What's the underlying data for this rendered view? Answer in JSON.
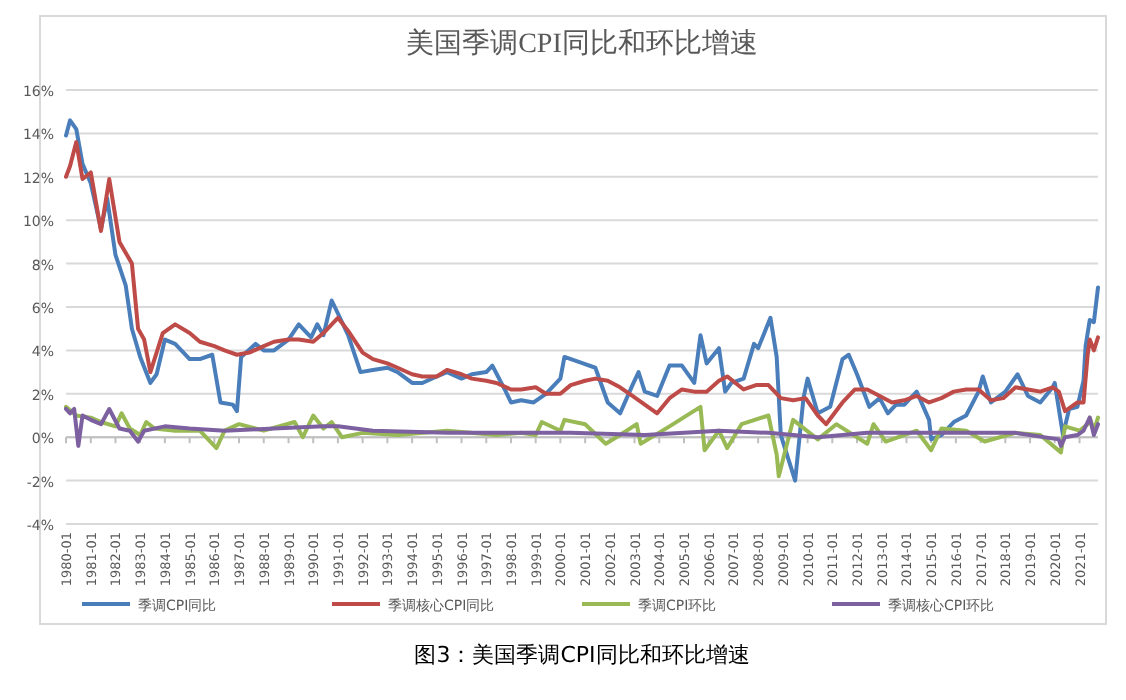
{
  "chart_data": {
    "type": "line",
    "title": "美国季调CPI同比和环比增速",
    "annotations": [
      "图3：美国季调CPI同比和环比增速"
    ],
    "ylim": [
      -4,
      16
    ],
    "yticks": [
      {
        "value": -4,
        "label": "-4%"
      },
      {
        "value": -2,
        "label": "-2%"
      },
      {
        "value": 0,
        "label": "0%"
      },
      {
        "value": 2,
        "label": "2%"
      },
      {
        "value": 4,
        "label": "4%"
      },
      {
        "value": 6,
        "label": "6%"
      },
      {
        "value": 8,
        "label": "8%"
      },
      {
        "value": 10,
        "label": "10%"
      },
      {
        "value": 12,
        "label": "12%"
      },
      {
        "value": 14,
        "label": "14%"
      },
      {
        "value": 16,
        "label": "16%"
      }
    ],
    "xlim": [
      "1980-01",
      "2021-10"
    ],
    "xticks": [
      "1980-01",
      "1981-01",
      "1982-01",
      "1983-01",
      "1984-01",
      "1985-01",
      "1986-01",
      "1987-01",
      "1988-01",
      "1989-01",
      "1990-01",
      "1991-01",
      "1992-01",
      "1993-01",
      "1994-01",
      "1995-01",
      "1996-01",
      "1997-01",
      "1998-01",
      "1999-01",
      "2000-01",
      "2001-01",
      "2002-01",
      "2003-01",
      "2004-01",
      "2005-01",
      "2006-01",
      "2007-01",
      "2008-01",
      "2009-01",
      "2010-01",
      "2011-01",
      "2012-01",
      "2013-01",
      "2014-01",
      "2015-01",
      "2016-01",
      "2017-01",
      "2018-01",
      "2019-01",
      "2020-01",
      "2021-01"
    ],
    "grid": "y",
    "legend": "bottom",
    "line_style": "solid",
    "series": [
      {
        "name": "季调CPI同比",
        "color": "#4a7ebb",
        "x": [
          "1980-01",
          "1980-03",
          "1980-06",
          "1980-09",
          "1981-01",
          "1981-06",
          "1981-09",
          "1982-01",
          "1982-06",
          "1982-09",
          "1983-01",
          "1983-06",
          "1983-09",
          "1984-01",
          "1984-06",
          "1985-01",
          "1985-06",
          "1985-12",
          "1986-04",
          "1986-10",
          "1986-12",
          "1987-02",
          "1987-09",
          "1988-01",
          "1988-06",
          "1989-01",
          "1989-06",
          "1989-12",
          "1990-03",
          "1990-06",
          "1990-10",
          "1991-01",
          "1991-06",
          "1991-12",
          "1992-06",
          "1993-01",
          "1993-06",
          "1994-01",
          "1994-06",
          "1995-01",
          "1995-06",
          "1996-01",
          "1996-06",
          "1997-01",
          "1997-04",
          "1997-10",
          "1998-01",
          "1998-06",
          "1998-12",
          "1999-06",
          "2000-01",
          "2000-03",
          "2000-12",
          "2001-06",
          "2001-12",
          "2002-06",
          "2002-12",
          "2003-03",
          "2003-06",
          "2003-12",
          "2004-06",
          "2004-12",
          "2005-06",
          "2005-09",
          "2005-12",
          "2006-06",
          "2006-09",
          "2006-12",
          "2007-06",
          "2007-11",
          "2008-01",
          "2008-07",
          "2008-10",
          "2008-12",
          "2009-07",
          "2009-11",
          "2010-01",
          "2010-06",
          "2010-12",
          "2011-06",
          "2011-09",
          "2012-01",
          "2012-07",
          "2012-12",
          "2013-04",
          "2013-08",
          "2013-12",
          "2014-06",
          "2014-12",
          "2015-01",
          "2015-06",
          "2015-12",
          "2016-06",
          "2016-12",
          "2017-02",
          "2017-06",
          "2018-01",
          "2018-07",
          "2018-12",
          "2019-06",
          "2019-12",
          "2020-01",
          "2020-05",
          "2020-08",
          "2020-12",
          "2021-03",
          "2021-04",
          "2021-06",
          "2021-08",
          "2021-10"
        ],
        "values": [
          13.9,
          14.6,
          14.2,
          12.6,
          11.7,
          9.6,
          11.0,
          8.4,
          7.0,
          5.0,
          3.7,
          2.5,
          2.9,
          4.5,
          4.3,
          3.6,
          3.6,
          3.8,
          1.6,
          1.5,
          1.2,
          3.7,
          4.3,
          4.0,
          4.0,
          4.5,
          5.2,
          4.6,
          5.2,
          4.7,
          6.3,
          5.7,
          4.7,
          3.0,
          3.1,
          3.2,
          3.0,
          2.5,
          2.5,
          2.8,
          3.0,
          2.7,
          2.9,
          3.0,
          3.3,
          2.2,
          1.6,
          1.7,
          1.6,
          2.0,
          2.7,
          3.7,
          3.4,
          3.2,
          1.6,
          1.1,
          2.4,
          3.0,
          2.1,
          1.9,
          3.3,
          3.3,
          2.5,
          4.7,
          3.4,
          4.1,
          2.1,
          2.5,
          2.7,
          4.3,
          4.1,
          5.5,
          3.7,
          0.1,
          -2.0,
          1.8,
          2.7,
          1.1,
          1.4,
          3.6,
          3.8,
          2.9,
          1.4,
          1.8,
          1.1,
          1.5,
          1.5,
          2.1,
          0.8,
          -0.1,
          0.1,
          0.7,
          1.0,
          2.1,
          2.8,
          1.6,
          2.1,
          2.9,
          1.9,
          1.6,
          2.3,
          2.5,
          0.1,
          1.3,
          1.4,
          2.6,
          4.2,
          5.4,
          5.3,
          6.9
        ]
      },
      {
        "name": "季调核心CPI同比",
        "color": "#be4b48",
        "x": [
          "1980-01",
          "1980-03",
          "1980-06",
          "1980-09",
          "1981-01",
          "1981-06",
          "1981-10",
          "1982-03",
          "1982-09",
          "1982-12",
          "1983-03",
          "1983-06",
          "1983-12",
          "1984-06",
          "1985-01",
          "1985-06",
          "1986-01",
          "1986-06",
          "1986-12",
          "1987-06",
          "1988-01",
          "1988-06",
          "1989-01",
          "1989-06",
          "1990-01",
          "1990-06",
          "1991-01",
          "1991-06",
          "1992-01",
          "1992-06",
          "1993-01",
          "1993-06",
          "1994-01",
          "1994-06",
          "1995-01",
          "1995-06",
          "1996-01",
          "1996-06",
          "1997-01",
          "1997-06",
          "1998-01",
          "1998-06",
          "1999-01",
          "1999-06",
          "2000-01",
          "2000-06",
          "2001-01",
          "2001-06",
          "2001-12",
          "2002-06",
          "2002-12",
          "2003-06",
          "2003-12",
          "2004-06",
          "2004-12",
          "2005-06",
          "2005-12",
          "2006-06",
          "2006-10",
          "2007-06",
          "2007-12",
          "2008-06",
          "2008-12",
          "2009-06",
          "2009-12",
          "2010-06",
          "2010-10",
          "2011-06",
          "2011-12",
          "2012-06",
          "2012-12",
          "2013-06",
          "2013-12",
          "2014-06",
          "2014-12",
          "2015-06",
          "2015-12",
          "2016-06",
          "2016-12",
          "2017-06",
          "2017-12",
          "2018-06",
          "2018-12",
          "2019-06",
          "2019-12",
          "2020-03",
          "2020-06",
          "2020-12",
          "2021-03",
          "2021-05",
          "2021-06",
          "2021-08",
          "2021-10"
        ],
        "values": [
          12.0,
          12.5,
          13.6,
          11.9,
          12.2,
          9.5,
          11.9,
          9.0,
          8.0,
          5.0,
          4.5,
          3.0,
          4.8,
          5.2,
          4.8,
          4.4,
          4.2,
          4.0,
          3.8,
          3.9,
          4.2,
          4.4,
          4.5,
          4.5,
          4.4,
          4.8,
          5.5,
          4.9,
          3.9,
          3.6,
          3.4,
          3.2,
          2.9,
          2.8,
          2.8,
          3.1,
          2.9,
          2.7,
          2.6,
          2.5,
          2.2,
          2.2,
          2.3,
          2.0,
          2.0,
          2.4,
          2.6,
          2.7,
          2.6,
          2.3,
          1.9,
          1.5,
          1.1,
          1.8,
          2.2,
          2.1,
          2.1,
          2.6,
          2.8,
          2.2,
          2.4,
          2.4,
          1.8,
          1.7,
          1.8,
          1.0,
          0.6,
          1.6,
          2.2,
          2.2,
          1.9,
          1.6,
          1.7,
          1.9,
          1.6,
          1.8,
          2.1,
          2.2,
          2.2,
          1.7,
          1.8,
          2.3,
          2.2,
          2.1,
          2.3,
          2.1,
          1.2,
          1.6,
          1.6,
          3.8,
          4.5,
          4.0,
          4.6
        ]
      },
      {
        "name": "季调CPI环比",
        "color": "#98b954",
        "x": [
          "1980-01",
          "1980-06",
          "1981-01",
          "1981-06",
          "1982-01",
          "1982-04",
          "1982-08",
          "1983-01",
          "1983-04",
          "1983-08",
          "1984-06",
          "1985-06",
          "1986-02",
          "1986-06",
          "1987-01",
          "1988-01",
          "1989-04",
          "1989-08",
          "1990-01",
          "1990-06",
          "1990-10",
          "1991-03",
          "1992-01",
          "1993-06",
          "1995-06",
          "1997-06",
          "1998-06",
          "1999-01",
          "1999-04",
          "2000-01",
          "2000-03",
          "2001-01",
          "2001-11",
          "2002-06",
          "2003-02",
          "2003-04",
          "2004-06",
          "2005-09",
          "2005-11",
          "2006-06",
          "2006-10",
          "2007-05",
          "2008-06",
          "2008-10",
          "2008-11",
          "2009-06",
          "2010-06",
          "2011-03",
          "2012-06",
          "2012-09",
          "2013-03",
          "2014-06",
          "2015-01",
          "2015-06",
          "2016-06",
          "2017-03",
          "2018-06",
          "2019-06",
          "2020-04",
          "2020-06",
          "2021-01",
          "2021-05",
          "2021-06",
          "2021-08",
          "2021-10"
        ],
        "values": [
          1.4,
          1.0,
          0.9,
          0.7,
          0.5,
          1.1,
          0.4,
          0.1,
          0.7,
          0.4,
          0.3,
          0.3,
          -0.5,
          0.3,
          0.6,
          0.3,
          0.7,
          0.0,
          1.0,
          0.4,
          0.7,
          0.0,
          0.2,
          0.1,
          0.3,
          0.1,
          0.2,
          0.1,
          0.7,
          0.3,
          0.8,
          0.6,
          -0.3,
          0.1,
          0.6,
          -0.3,
          0.5,
          1.4,
          -0.6,
          0.3,
          -0.5,
          0.6,
          1.0,
          -0.8,
          -1.8,
          0.8,
          -0.1,
          0.6,
          -0.3,
          0.6,
          -0.2,
          0.3,
          -0.6,
          0.4,
          0.3,
          -0.2,
          0.2,
          0.1,
          -0.7,
          0.5,
          0.3,
          0.6,
          0.9,
          0.3,
          0.9
        ]
      },
      {
        "name": "季调核心CPI环比",
        "color": "#7d60a0",
        "x": [
          "1980-01",
          "1980-03",
          "1980-05",
          "1980-07",
          "1980-09",
          "1981-01",
          "1981-06",
          "1981-10",
          "1982-03",
          "1982-08",
          "1982-12",
          "1983-03",
          "1984-01",
          "1985-01",
          "1986-06",
          "1988-06",
          "1990-06",
          "1991-01",
          "1992-06",
          "1995-06",
          "1998-06",
          "2000-06",
          "2003-06",
          "2006-06",
          "2008-06",
          "2010-06",
          "2012-06",
          "2015-06",
          "2018-06",
          "2020-03",
          "2020-04",
          "2020-06",
          "2020-12",
          "2021-03",
          "2021-05",
          "2021-06",
          "2021-08",
          "2021-10"
        ],
        "values": [
          1.3,
          1.1,
          1.3,
          -0.4,
          1.0,
          0.8,
          0.6,
          1.3,
          0.4,
          0.3,
          -0.2,
          0.3,
          0.5,
          0.4,
          0.3,
          0.4,
          0.5,
          0.5,
          0.3,
          0.2,
          0.2,
          0.2,
          0.1,
          0.3,
          0.2,
          0.0,
          0.2,
          0.2,
          0.2,
          -0.1,
          -0.4,
          0.0,
          0.1,
          0.3,
          0.7,
          0.9,
          0.1,
          0.6
        ]
      }
    ]
  }
}
